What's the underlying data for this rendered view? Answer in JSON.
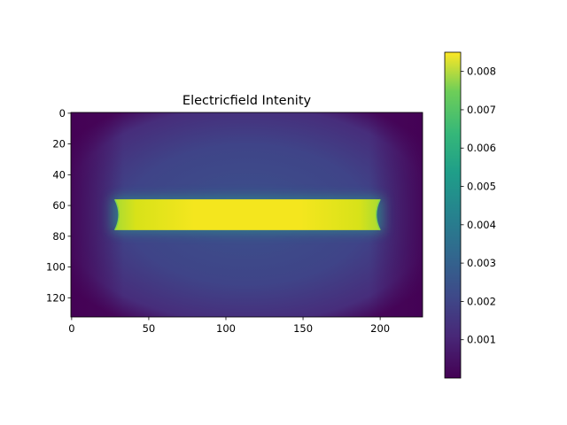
{
  "chart_data": {
    "type": "heatmap",
    "title": "Electricfield Intenity",
    "xlabel": "",
    "ylabel": "",
    "xlim": [
      -0.5,
      227.5
    ],
    "ylim": [
      132.5,
      -0.5
    ],
    "y_axis_inverted": true,
    "grid": false,
    "x_ticks": [
      0,
      50,
      100,
      150,
      200
    ],
    "y_ticks": [
      0,
      20,
      40,
      60,
      80,
      100,
      120
    ],
    "image_shape": {
      "rows": 133,
      "cols": 228
    },
    "colormap": "viridis",
    "colorbar": {
      "ticks": [
        0.001,
        0.002,
        0.003,
        0.004,
        0.005,
        0.006,
        0.007,
        0.008
      ],
      "tick_labels": [
        "0.001",
        "0.002",
        "0.003",
        "0.004",
        "0.005",
        "0.006",
        "0.007",
        "0.008"
      ],
      "range": [
        0.0,
        0.0085
      ]
    },
    "regions": [
      {
        "name": "plate",
        "x_range": [
          28,
          200
        ],
        "y_range": [
          56,
          76
        ],
        "value": 0.0083
      },
      {
        "name": "background-center",
        "value": 0.0017
      },
      {
        "name": "background-edges",
        "value": 0.0003
      }
    ]
  },
  "colors": {
    "viridis_low": "#440154",
    "viridis_mid": "#21918c",
    "viridis_high": "#fde725"
  }
}
